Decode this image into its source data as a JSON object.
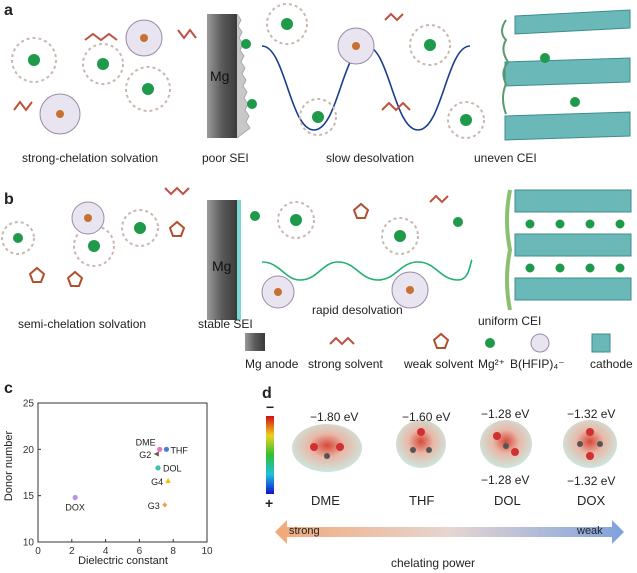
{
  "panels": {
    "a": {
      "letter": "a",
      "labels": [
        "strong-chelation solvation",
        "poor SEI",
        "slow desolvation",
        "uneven CEI"
      ],
      "anode_text": "Mg"
    },
    "b": {
      "letter": "b",
      "labels": [
        "semi-chelation solvation",
        "stable SEI",
        "rapid desolvation",
        "uniform CEI"
      ],
      "anode_text": "Mg"
    },
    "legend": {
      "items": [
        "Mg anode",
        "strong solvent",
        "weak solvent",
        "Mg²⁺",
        "B(HFIP)₄⁻",
        "cathode"
      ]
    },
    "c": {
      "letter": "c",
      "xlabel": "Dielectric constant",
      "ylabel": "Donor number"
    },
    "d": {
      "letter": "d",
      "scale_top": "−",
      "scale_bottom": "+",
      "energies_top": [
        "−1.80 eV",
        "−1.60 eV",
        "−1.28 eV",
        "−1.32 eV"
      ],
      "energies_bottom": [
        "",
        "",
        "−1.28 eV",
        "−1.32 eV"
      ],
      "molecules": [
        "DME",
        "THF",
        "DOL",
        "DOX"
      ],
      "arrow_left": "strong",
      "arrow_right": "weak",
      "arrow_caption": "chelating power"
    }
  },
  "chart_data": {
    "type": "scatter",
    "xlabel": "Dielectric constant",
    "ylabel": "Donor number",
    "xlim": [
      0,
      10
    ],
    "ylim": [
      10,
      25
    ],
    "xticks": [
      0,
      2,
      4,
      6,
      8,
      10
    ],
    "yticks": [
      10,
      15,
      20,
      25
    ],
    "points": [
      {
        "label": "DME",
        "x": 7.2,
        "y": 20.0,
        "color": "#e377c2",
        "marker": "circle"
      },
      {
        "label": "THF",
        "x": 7.6,
        "y": 20.0,
        "color": "#4a7fd6",
        "marker": "circle"
      },
      {
        "label": "G2",
        "x": 7.0,
        "y": 19.5,
        "color": "#7b5a4a",
        "marker": "triangle-left"
      },
      {
        "label": "DOL",
        "x": 7.1,
        "y": 18.0,
        "color": "#40c0b0",
        "marker": "circle"
      },
      {
        "label": "G4",
        "x": 7.7,
        "y": 16.6,
        "color": "#f0c000",
        "marker": "triangle-up"
      },
      {
        "label": "G3",
        "x": 7.5,
        "y": 14.0,
        "color": "#f0a040",
        "marker": "diamond"
      },
      {
        "label": "DOX",
        "x": 2.2,
        "y": 14.8,
        "color": "#c090e0",
        "marker": "circle"
      }
    ]
  }
}
